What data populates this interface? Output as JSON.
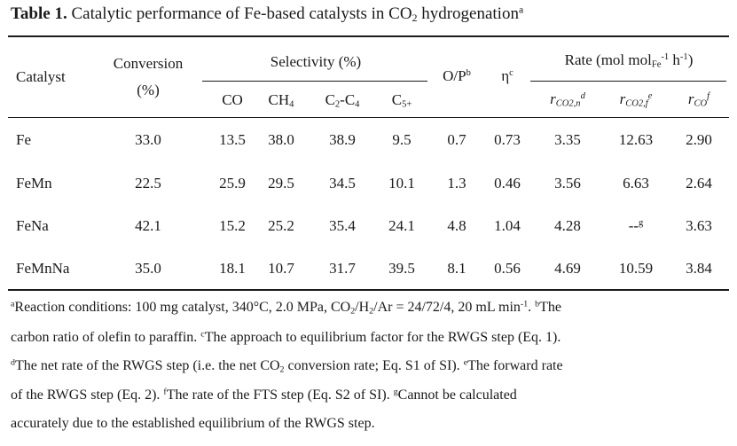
{
  "table": {
    "caption": {
      "label": "Table 1.",
      "text_pre": " Catalytic performance of Fe-based catalysts in CO",
      "sub": "2",
      "text_post": " hydrogenation",
      "sup": "a"
    },
    "headers": {
      "catalyst": "Catalyst",
      "conversion_line1": "Conversion",
      "conversion_line2": "(%)",
      "selectivity": "Selectivity (%)",
      "co": "CO",
      "ch4_main": "CH",
      "ch4_sub": "4",
      "c2c4_a": "C",
      "c2c4_b": "2",
      "c2c4_c": "-C",
      "c2c4_d": "4",
      "c5_main": "C",
      "c5_sub": "5+",
      "op_main": "O/P",
      "op_sup": "b",
      "eta_main": "η",
      "eta_sup": "c",
      "rate_pre": "Rate (mol mol",
      "rate_sub": "Fe",
      "rate_sup1": "-1",
      "rate_h": " h",
      "rate_sup2": "-1",
      "rate_close": ")",
      "rco2n_main": "r",
      "rco2n_sub": "CO2,n",
      "rco2n_sup": "d",
      "rco2f_main": "r",
      "rco2f_sub": "CO2,f",
      "rco2f_sup": "e",
      "rco_main": "r",
      "rco_sub": "CO",
      "rco_sup": "f"
    },
    "rows": [
      {
        "catalyst": "Fe",
        "conversion": "33.0",
        "co": "13.5",
        "ch4": "38.0",
        "c2c4": "38.9",
        "c5": "9.5",
        "op": "0.7",
        "eta": "0.73",
        "rco2n": "3.35",
        "rco2f": "12.63",
        "rco2f_sup": "",
        "rco": "2.90"
      },
      {
        "catalyst": "FeMn",
        "conversion": "22.5",
        "co": "25.9",
        "ch4": "29.5",
        "c2c4": "34.5",
        "c5": "10.1",
        "op": "1.3",
        "eta": "0.46",
        "rco2n": "3.56",
        "rco2f": "6.63",
        "rco2f_sup": "",
        "rco": "2.64"
      },
      {
        "catalyst": "FeNa",
        "conversion": "42.1",
        "co": "15.2",
        "ch4": "25.2",
        "c2c4": "35.4",
        "c5": "24.1",
        "op": "4.8",
        "eta": "1.04",
        "rco2n": "4.28",
        "rco2f": "--",
        "rco2f_sup": "g",
        "rco": "3.63"
      },
      {
        "catalyst": "FeMnNa",
        "conversion": "35.0",
        "co": "18.1",
        "ch4": "10.7",
        "c2c4": "31.7",
        "c5": "39.5",
        "op": "8.1",
        "eta": "0.56",
        "rco2n": "4.69",
        "rco2f": "10.59",
        "rco2f_sup": "",
        "rco": "3.84"
      }
    ],
    "footnotes": {
      "a_sup": "a",
      "a_text1": "Reaction conditions: 100 mg catalyst, 340°C, 2.0 MPa, CO",
      "a_sub1": "2",
      "a_text2": "/H",
      "a_sub2": "2",
      "a_text3": "/Ar = 24/72/4, 20 mL min",
      "a_sup2": "-1",
      "a_text4": ". ",
      "b_sup": "b",
      "b_text_line1": "The",
      "b_text_line2": "carbon ratio of olefin to paraffin. ",
      "c_sup": "c",
      "c_text": "The approach to equilibrium factor for the RWGS step (Eq. 1).",
      "d_sup": "d",
      "d_text1": "The net rate of the RWGS step (i.e. the net CO",
      "d_sub": "2",
      "d_text2": " conversion rate; Eq. S1 of SI). ",
      "e_sup": "e",
      "e_text_line1": "The forward rate",
      "e_text_line2": "of the RWGS step (Eq. 2). ",
      "f_sup": "f",
      "f_text": "The rate of the FTS step (Eq. S2 of SI). ",
      "g_sup": "g",
      "g_text_line1": "Cannot be calculated",
      "g_text_line2": "accurately due to the established equilibrium of the RWGS step."
    }
  }
}
